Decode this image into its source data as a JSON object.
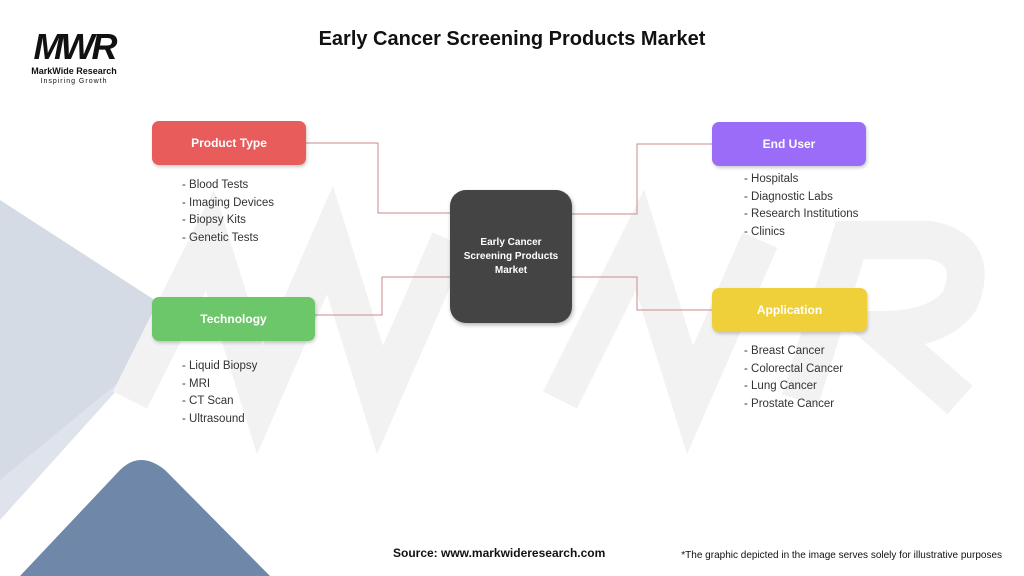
{
  "title": "Early Cancer Screening Products Market",
  "logo": {
    "mark": "MWR",
    "name": "MarkWide Research",
    "tagline": "Inspiring Growth"
  },
  "center": "Early Cancer Screening Products Market",
  "colors": {
    "product_type": "#e85c5c",
    "end_user": "#9b6cf7",
    "technology": "#6cc76a",
    "application": "#f0d03a",
    "center": "#444444",
    "connector": "#c98a8a"
  },
  "categories": [
    {
      "label": "Product Type",
      "items": [
        "- Blood Tests",
        "- Imaging Devices",
        "- Biopsy Kits",
        "- Genetic Tests"
      ]
    },
    {
      "label": "End User",
      "items": [
        "- Hospitals",
        "- Diagnostic Labs",
        "- Research Institutions",
        "- Clinics"
      ]
    },
    {
      "label": "Technology",
      "items": [
        "- Liquid Biopsy",
        "- MRI",
        "- CT Scan",
        "- Ultrasound"
      ]
    },
    {
      "label": "Application",
      "items": [
        "- Breast Cancer",
        "- Colorectal Cancer",
        "- Lung Cancer",
        "- Prostate Cancer"
      ]
    }
  ],
  "footer": {
    "source": "Source: www.markwideresearch.com",
    "note": "*The graphic depicted in the image serves solely for illustrative purposes"
  }
}
